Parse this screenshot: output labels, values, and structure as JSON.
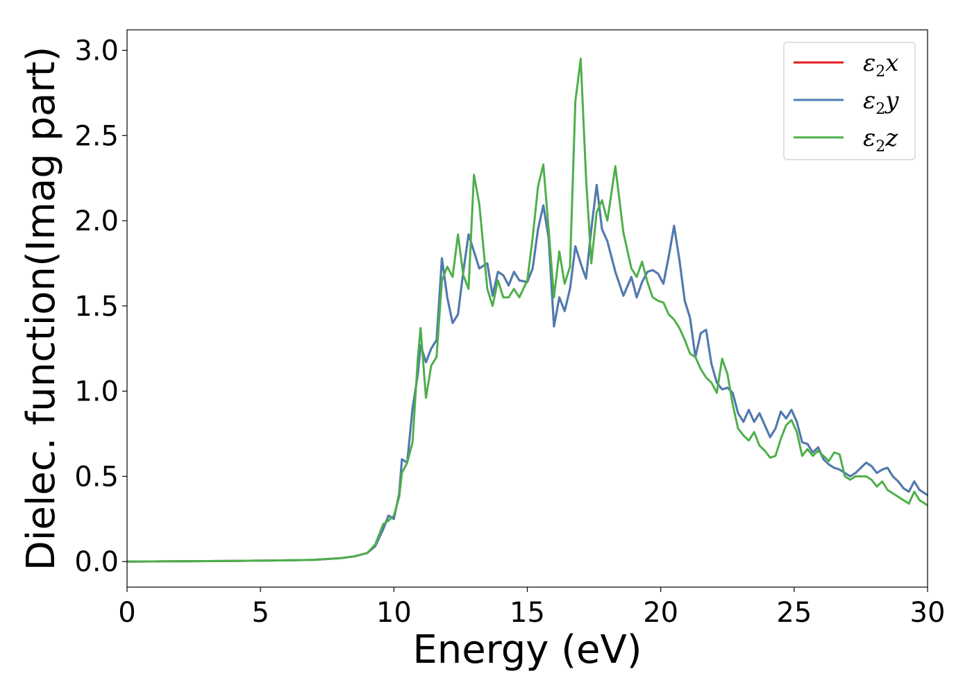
{
  "chart_data": {
    "type": "line",
    "xlabel": "Energy (eV)",
    "ylabel": "Dielec. function(Imag part)",
    "xlim": [
      0,
      30
    ],
    "ylim": [
      -0.15,
      3.12
    ],
    "xticks": [
      0,
      5,
      10,
      15,
      20,
      25,
      30
    ],
    "yticks": [
      0.0,
      0.5,
      1.0,
      1.5,
      2.0,
      2.5,
      3.0
    ],
    "xtick_labels": [
      "0",
      "5",
      "10",
      "15",
      "20",
      "25",
      "30"
    ],
    "ytick_labels": [
      "0.0",
      "0.5",
      "1.0",
      "1.5",
      "2.0",
      "2.5",
      "3.0"
    ],
    "grid": false,
    "legend_position": "top-right",
    "series": [
      {
        "name": "x",
        "legend_base": "ε",
        "legend_sub": "2",
        "legend_var": "x",
        "color": "#e41a1c",
        "x": [
          0,
          2,
          4,
          6,
          7,
          8,
          8.5,
          9,
          9.3,
          9.6,
          9.8,
          10.0,
          10.2,
          10.3,
          10.5,
          10.7,
          10.9,
          11.0,
          11.2,
          11.4,
          11.6,
          11.8,
          12.0,
          12.2,
          12.4,
          12.6,
          12.8,
          13.0,
          13.2,
          13.5,
          13.7,
          13.9,
          14.1,
          14.3,
          14.5,
          14.7,
          15.0,
          15.2,
          15.4,
          15.6,
          15.8,
          16.0,
          16.2,
          16.4,
          16.6,
          16.8,
          17.0,
          17.2,
          17.4,
          17.6,
          17.8,
          18.0,
          18.3,
          18.6,
          18.9,
          19.1,
          19.3,
          19.5,
          19.7,
          19.9,
          20.1,
          20.3,
          20.5,
          20.7,
          20.9,
          21.1,
          21.3,
          21.5,
          21.7,
          21.9,
          22.1,
          22.3,
          22.5,
          22.7,
          22.9,
          23.1,
          23.3,
          23.5,
          23.7,
          23.9,
          24.1,
          24.3,
          24.5,
          24.7,
          24.9,
          25.1,
          25.3,
          25.5,
          25.7,
          25.9,
          26.1,
          26.3,
          26.5,
          26.7,
          26.9,
          27.1,
          27.3,
          27.5,
          27.7,
          27.9,
          28.1,
          28.3,
          28.5,
          28.7,
          28.9,
          29.1,
          29.3,
          29.5,
          29.7,
          30.0
        ],
        "y": [
          0.0,
          0.002,
          0.004,
          0.007,
          0.01,
          0.02,
          0.03,
          0.05,
          0.09,
          0.19,
          0.27,
          0.25,
          0.4,
          0.6,
          0.58,
          0.9,
          1.1,
          1.27,
          1.17,
          1.25,
          1.3,
          1.78,
          1.55,
          1.4,
          1.45,
          1.7,
          1.92,
          1.82,
          1.72,
          1.75,
          1.56,
          1.7,
          1.68,
          1.62,
          1.7,
          1.65,
          1.64,
          1.72,
          1.95,
          2.09,
          1.9,
          1.38,
          1.55,
          1.47,
          1.6,
          1.85,
          1.75,
          1.66,
          1.95,
          2.21,
          1.95,
          1.88,
          1.7,
          1.56,
          1.67,
          1.55,
          1.64,
          1.7,
          1.71,
          1.69,
          1.63,
          1.79,
          1.97,
          1.77,
          1.53,
          1.43,
          1.2,
          1.34,
          1.36,
          1.16,
          1.05,
          1.01,
          1.02,
          0.99,
          0.87,
          0.82,
          0.89,
          0.82,
          0.87,
          0.8,
          0.73,
          0.78,
          0.88,
          0.84,
          0.89,
          0.82,
          0.7,
          0.69,
          0.64,
          0.67,
          0.6,
          0.57,
          0.55,
          0.54,
          0.52,
          0.5,
          0.52,
          0.55,
          0.58,
          0.56,
          0.52,
          0.54,
          0.55,
          0.5,
          0.47,
          0.43,
          0.41,
          0.47,
          0.42,
          0.39
        ],
        "hidden_under": "y"
      },
      {
        "name": "y",
        "legend_base": "ε",
        "legend_sub": "2",
        "legend_var": "y",
        "color": "#4a7db3",
        "x": [
          0,
          2,
          4,
          6,
          7,
          8,
          8.5,
          9,
          9.3,
          9.6,
          9.8,
          10.0,
          10.2,
          10.3,
          10.5,
          10.7,
          10.9,
          11.0,
          11.2,
          11.4,
          11.6,
          11.8,
          12.0,
          12.2,
          12.4,
          12.6,
          12.8,
          13.0,
          13.2,
          13.5,
          13.7,
          13.9,
          14.1,
          14.3,
          14.5,
          14.7,
          15.0,
          15.2,
          15.4,
          15.6,
          15.8,
          16.0,
          16.2,
          16.4,
          16.6,
          16.8,
          17.0,
          17.2,
          17.4,
          17.6,
          17.8,
          18.0,
          18.3,
          18.6,
          18.9,
          19.1,
          19.3,
          19.5,
          19.7,
          19.9,
          20.1,
          20.3,
          20.5,
          20.7,
          20.9,
          21.1,
          21.3,
          21.5,
          21.7,
          21.9,
          22.1,
          22.3,
          22.5,
          22.7,
          22.9,
          23.1,
          23.3,
          23.5,
          23.7,
          23.9,
          24.1,
          24.3,
          24.5,
          24.7,
          24.9,
          25.1,
          25.3,
          25.5,
          25.7,
          25.9,
          26.1,
          26.3,
          26.5,
          26.7,
          26.9,
          27.1,
          27.3,
          27.5,
          27.7,
          27.9,
          28.1,
          28.3,
          28.5,
          28.7,
          28.9,
          29.1,
          29.3,
          29.5,
          29.7,
          30.0
        ],
        "y": [
          0.0,
          0.002,
          0.004,
          0.007,
          0.01,
          0.02,
          0.03,
          0.05,
          0.09,
          0.19,
          0.27,
          0.25,
          0.4,
          0.6,
          0.58,
          0.9,
          1.1,
          1.27,
          1.17,
          1.25,
          1.3,
          1.78,
          1.55,
          1.4,
          1.45,
          1.7,
          1.92,
          1.82,
          1.72,
          1.75,
          1.56,
          1.7,
          1.68,
          1.62,
          1.7,
          1.65,
          1.64,
          1.72,
          1.95,
          2.09,
          1.9,
          1.38,
          1.55,
          1.47,
          1.6,
          1.85,
          1.75,
          1.66,
          1.95,
          2.21,
          1.95,
          1.88,
          1.7,
          1.56,
          1.67,
          1.55,
          1.64,
          1.7,
          1.71,
          1.69,
          1.63,
          1.79,
          1.97,
          1.77,
          1.53,
          1.43,
          1.2,
          1.34,
          1.36,
          1.16,
          1.05,
          1.01,
          1.02,
          0.99,
          0.87,
          0.82,
          0.89,
          0.82,
          0.87,
          0.8,
          0.73,
          0.78,
          0.88,
          0.84,
          0.89,
          0.82,
          0.7,
          0.69,
          0.64,
          0.67,
          0.6,
          0.57,
          0.55,
          0.54,
          0.52,
          0.5,
          0.52,
          0.55,
          0.58,
          0.56,
          0.52,
          0.54,
          0.55,
          0.5,
          0.47,
          0.43,
          0.41,
          0.47,
          0.42,
          0.39
        ]
      },
      {
        "name": "z",
        "legend_base": "ε",
        "legend_sub": "2",
        "legend_var": "z",
        "color": "#4daf4a",
        "x": [
          0,
          2,
          4,
          6,
          7,
          8,
          8.5,
          9,
          9.3,
          9.6,
          9.8,
          10.0,
          10.2,
          10.3,
          10.5,
          10.7,
          10.9,
          11.0,
          11.2,
          11.4,
          11.6,
          11.8,
          12.0,
          12.2,
          12.4,
          12.6,
          12.8,
          13.0,
          13.2,
          13.5,
          13.7,
          13.9,
          14.1,
          14.3,
          14.5,
          14.7,
          15.0,
          15.2,
          15.4,
          15.6,
          15.8,
          16.0,
          16.2,
          16.4,
          16.6,
          16.8,
          17.0,
          17.2,
          17.4,
          17.6,
          17.8,
          18.0,
          18.3,
          18.6,
          18.9,
          19.1,
          19.3,
          19.5,
          19.7,
          19.9,
          20.1,
          20.3,
          20.5,
          20.7,
          20.9,
          21.1,
          21.3,
          21.5,
          21.7,
          21.9,
          22.1,
          22.3,
          22.5,
          22.7,
          22.9,
          23.1,
          23.3,
          23.5,
          23.7,
          23.9,
          24.1,
          24.3,
          24.5,
          24.7,
          24.9,
          25.1,
          25.3,
          25.5,
          25.7,
          25.9,
          26.1,
          26.3,
          26.5,
          26.7,
          26.9,
          27.1,
          27.3,
          27.5,
          27.7,
          27.9,
          28.1,
          28.3,
          28.5,
          28.7,
          28.9,
          29.1,
          29.3,
          29.5,
          29.7,
          30.0
        ],
        "y": [
          0.0,
          0.002,
          0.004,
          0.007,
          0.01,
          0.02,
          0.03,
          0.05,
          0.1,
          0.22,
          0.24,
          0.27,
          0.38,
          0.52,
          0.58,
          0.7,
          1.2,
          1.37,
          0.96,
          1.15,
          1.2,
          1.65,
          1.73,
          1.67,
          1.92,
          1.68,
          1.6,
          2.27,
          2.1,
          1.6,
          1.5,
          1.65,
          1.55,
          1.55,
          1.6,
          1.55,
          1.65,
          1.9,
          2.2,
          2.33,
          1.95,
          1.55,
          1.82,
          1.63,
          1.73,
          2.7,
          2.95,
          2.25,
          1.75,
          2.05,
          2.12,
          2.0,
          2.32,
          1.93,
          1.72,
          1.67,
          1.76,
          1.64,
          1.55,
          1.53,
          1.52,
          1.45,
          1.42,
          1.37,
          1.3,
          1.22,
          1.2,
          1.13,
          1.08,
          1.05,
          0.99,
          1.19,
          1.1,
          0.92,
          0.78,
          0.74,
          0.71,
          0.76,
          0.68,
          0.65,
          0.61,
          0.62,
          0.72,
          0.8,
          0.83,
          0.76,
          0.62,
          0.66,
          0.62,
          0.65,
          0.62,
          0.59,
          0.64,
          0.63,
          0.5,
          0.48,
          0.5,
          0.5,
          0.5,
          0.48,
          0.44,
          0.47,
          0.42,
          0.4,
          0.38,
          0.36,
          0.34,
          0.41,
          0.36,
          0.33
        ]
      }
    ]
  }
}
